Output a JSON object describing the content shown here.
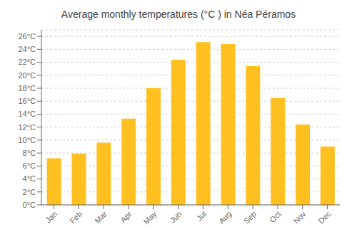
{
  "chart_data": {
    "type": "bar",
    "title": "Average monthly temperatures (°C ) in Néa Péramos",
    "categories": [
      "Jan",
      "Feb",
      "Mar",
      "Apr",
      "May",
      "Jun",
      "Jul",
      "Aug",
      "Sep",
      "Oct",
      "Nov",
      "Dec"
    ],
    "values": [
      7.2,
      7.9,
      9.6,
      13.3,
      18.0,
      22.4,
      25.1,
      24.8,
      21.4,
      16.5,
      12.4,
      9.0
    ],
    "color": "#FFC020",
    "ylim": [
      0,
      27
    ],
    "yticks": [
      {
        "value": 0,
        "label": "0°C"
      },
      {
        "value": 2,
        "label": "2°C"
      },
      {
        "value": 4,
        "label": "4°C"
      },
      {
        "value": 6,
        "label": "6°C"
      },
      {
        "value": 8,
        "label": "8°C"
      },
      {
        "value": 10,
        "label": "10°C"
      },
      {
        "value": 12,
        "label": "12°C"
      },
      {
        "value": 14,
        "label": "14°C"
      },
      {
        "value": 16,
        "label": "16°C"
      },
      {
        "value": 18,
        "label": "18°C"
      },
      {
        "value": 20,
        "label": "20°C"
      },
      {
        "value": 22,
        "label": "22°C"
      },
      {
        "value": 24,
        "label": "24°C"
      },
      {
        "value": 26,
        "label": "26°C"
      }
    ],
    "grid": true
  }
}
